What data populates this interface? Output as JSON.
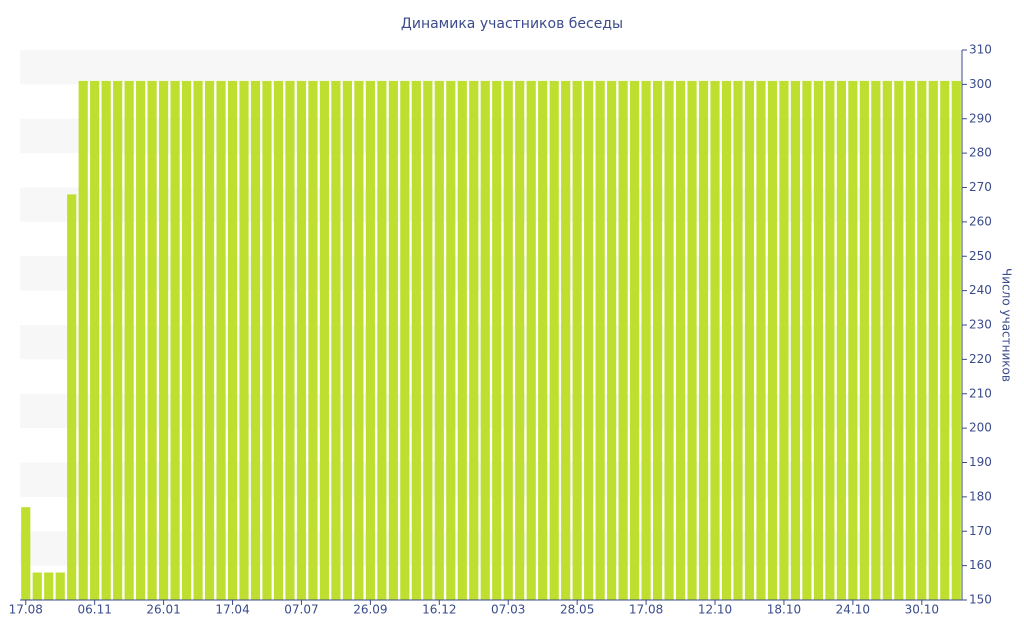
{
  "chart_data": {
    "type": "bar",
    "title": "Динамика участников беседы",
    "y_axis_label": "Число участников",
    "categories": [
      "17.08",
      null,
      null,
      null,
      null,
      null,
      "06.11",
      null,
      null,
      null,
      null,
      null,
      "26.01",
      null,
      null,
      null,
      null,
      null,
      "17.04",
      null,
      null,
      null,
      null,
      null,
      "07.07",
      null,
      null,
      null,
      null,
      null,
      "26.09",
      null,
      null,
      null,
      null,
      null,
      "16.12",
      null,
      null,
      null,
      null,
      null,
      "07.03",
      null,
      null,
      null,
      null,
      null,
      "28.05",
      null,
      null,
      null,
      null,
      null,
      "17.08",
      null,
      null,
      null,
      null,
      null,
      "12.10",
      null,
      null,
      null,
      null,
      null,
      "18.10",
      null,
      null,
      null,
      null,
      null,
      "24.10",
      null,
      null,
      null,
      null,
      null,
      "30.10",
      null,
      null,
      null
    ],
    "values": [
      177,
      158,
      158,
      158,
      268,
      301,
      301,
      301,
      301,
      301,
      301,
      301,
      301,
      301,
      301,
      301,
      301,
      301,
      301,
      301,
      301,
      301,
      301,
      301,
      301,
      301,
      301,
      301,
      301,
      301,
      301,
      301,
      301,
      301,
      301,
      301,
      301,
      301,
      301,
      301,
      301,
      301,
      301,
      301,
      301,
      301,
      301,
      301,
      301,
      301,
      301,
      301,
      301,
      301,
      301,
      301,
      301,
      301,
      301,
      301,
      301,
      301,
      301,
      301,
      301,
      301,
      301,
      301,
      301,
      301,
      301,
      301,
      301,
      301,
      301,
      301,
      301,
      301,
      301,
      301,
      301,
      301
    ],
    "color": "#bedf30",
    "ylim": [
      150,
      310
    ],
    "yticks": [
      150,
      160,
      170,
      180,
      190,
      200,
      210,
      220,
      230,
      240,
      250,
      260,
      270,
      280,
      290,
      300,
      310
    ],
    "grid": true
  }
}
